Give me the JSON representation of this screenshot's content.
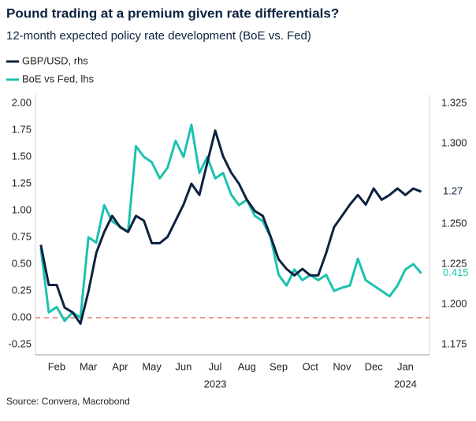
{
  "chart_data": {
    "type": "line",
    "title": "Pound trading at a premium given rate differentials?",
    "subtitle": "12-month expected policy rate development (BoE vs. Fed)",
    "source": "Source: Convera, Macrobond",
    "x": [
      1,
      1.25,
      1.5,
      1.75,
      2,
      2.25,
      2.5,
      2.75,
      3,
      3.25,
      3.5,
      3.75,
      4,
      4.25,
      4.5,
      4.75,
      5,
      5.25,
      5.5,
      5.75,
      6,
      6.25,
      6.5,
      6.75,
      7,
      7.25,
      7.5,
      7.75,
      8,
      8.25,
      8.5,
      8.75,
      9,
      9.25,
      9.5,
      9.75,
      10,
      10.25,
      10.5,
      10.75,
      11,
      11.25,
      11.5,
      11.75,
      12,
      12.25,
      12.5,
      12.75,
      13
    ],
    "xlim": [
      0.83,
      13.26
    ],
    "xticks": [
      {
        "value": 1.5,
        "label": "Feb"
      },
      {
        "value": 2.5,
        "label": "Mar"
      },
      {
        "value": 3.5,
        "label": "Apr"
      },
      {
        "value": 4.5,
        "label": "May"
      },
      {
        "value": 5.5,
        "label": "Jun"
      },
      {
        "value": 6.5,
        "label": "Jul"
      },
      {
        "value": 7.5,
        "label": "Aug"
      },
      {
        "value": 8.5,
        "label": "Sep"
      },
      {
        "value": 9.5,
        "label": "Oct"
      },
      {
        "value": 10.5,
        "label": "Nov"
      },
      {
        "value": 11.5,
        "label": "Dec"
      },
      {
        "value": 12.5,
        "label": "Jan"
      }
    ],
    "x_group_labels": [
      {
        "value": 6.5,
        "label": "2023"
      },
      {
        "value": 12.5,
        "label": "2024"
      }
    ],
    "ylim": [
      -0.25,
      2
    ],
    "yticks": [
      -0.25,
      {
        "value": 0,
        "label": "0.00"
      },
      0.25,
      {
        "value": 0.5,
        "label": "0.50"
      },
      0.75,
      {
        "value": 1,
        "label": "1.00"
      },
      1.25,
      {
        "value": 1.5,
        "label": "1.50"
      },
      1.75,
      {
        "value": 2,
        "label": "2.00"
      }
    ],
    "y2lim": [
      1.175,
      1.325
    ],
    "y2ticks": [
      1.175,
      {
        "value": 1.2,
        "label": "1.200"
      },
      1.225,
      {
        "value": 1.25,
        "label": "1.250"
      },
      {
        "value": 1.3,
        "label": "1.300"
      },
      1.325
    ],
    "reference_line": {
      "value": 0,
      "color": "#e07a7a"
    },
    "series": [
      {
        "name": "GBP/USD, rhs",
        "color": "#0d2240",
        "axis": "y2",
        "values": [
          1.237,
          1.212,
          1.212,
          1.198,
          1.195,
          1.188,
          1.208,
          1.232,
          1.245,
          1.255,
          1.248,
          1.245,
          1.255,
          1.252,
          1.238,
          1.238,
          1.242,
          1.252,
          1.262,
          1.275,
          1.268,
          1.288,
          1.308,
          1.292,
          1.282,
          1.275,
          1.265,
          1.258,
          1.255,
          1.242,
          1.228,
          1.222,
          1.218,
          1.222,
          1.218,
          1.218,
          1.232,
          1.248,
          1.255,
          1.262,
          1.268,
          1.262,
          1.272,
          1.265,
          1.268,
          1.272,
          1.268,
          1.272,
          1.27
        ]
      },
      {
        "name": "BoE vs Fed, lhs",
        "color": "#1cc2b0",
        "values": [
          0.65,
          0.05,
          0.1,
          -0.03,
          0.05,
          0,
          0.75,
          0.7,
          1.05,
          0.9,
          0.85,
          0.8,
          1.6,
          1.5,
          1.45,
          1.3,
          1.4,
          1.65,
          1.5,
          1.8,
          1.35,
          1.5,
          1.3,
          1.35,
          1.15,
          1.05,
          1.1,
          0.95,
          0.9,
          0.75,
          0.4,
          0.3,
          0.45,
          0.35,
          0.4,
          0.35,
          0.4,
          0.25,
          0.28,
          0.3,
          0.55,
          0.35,
          0.3,
          0.25,
          0.2,
          0.3,
          0.45,
          0.5,
          0.415
        ]
      }
    ]
  }
}
